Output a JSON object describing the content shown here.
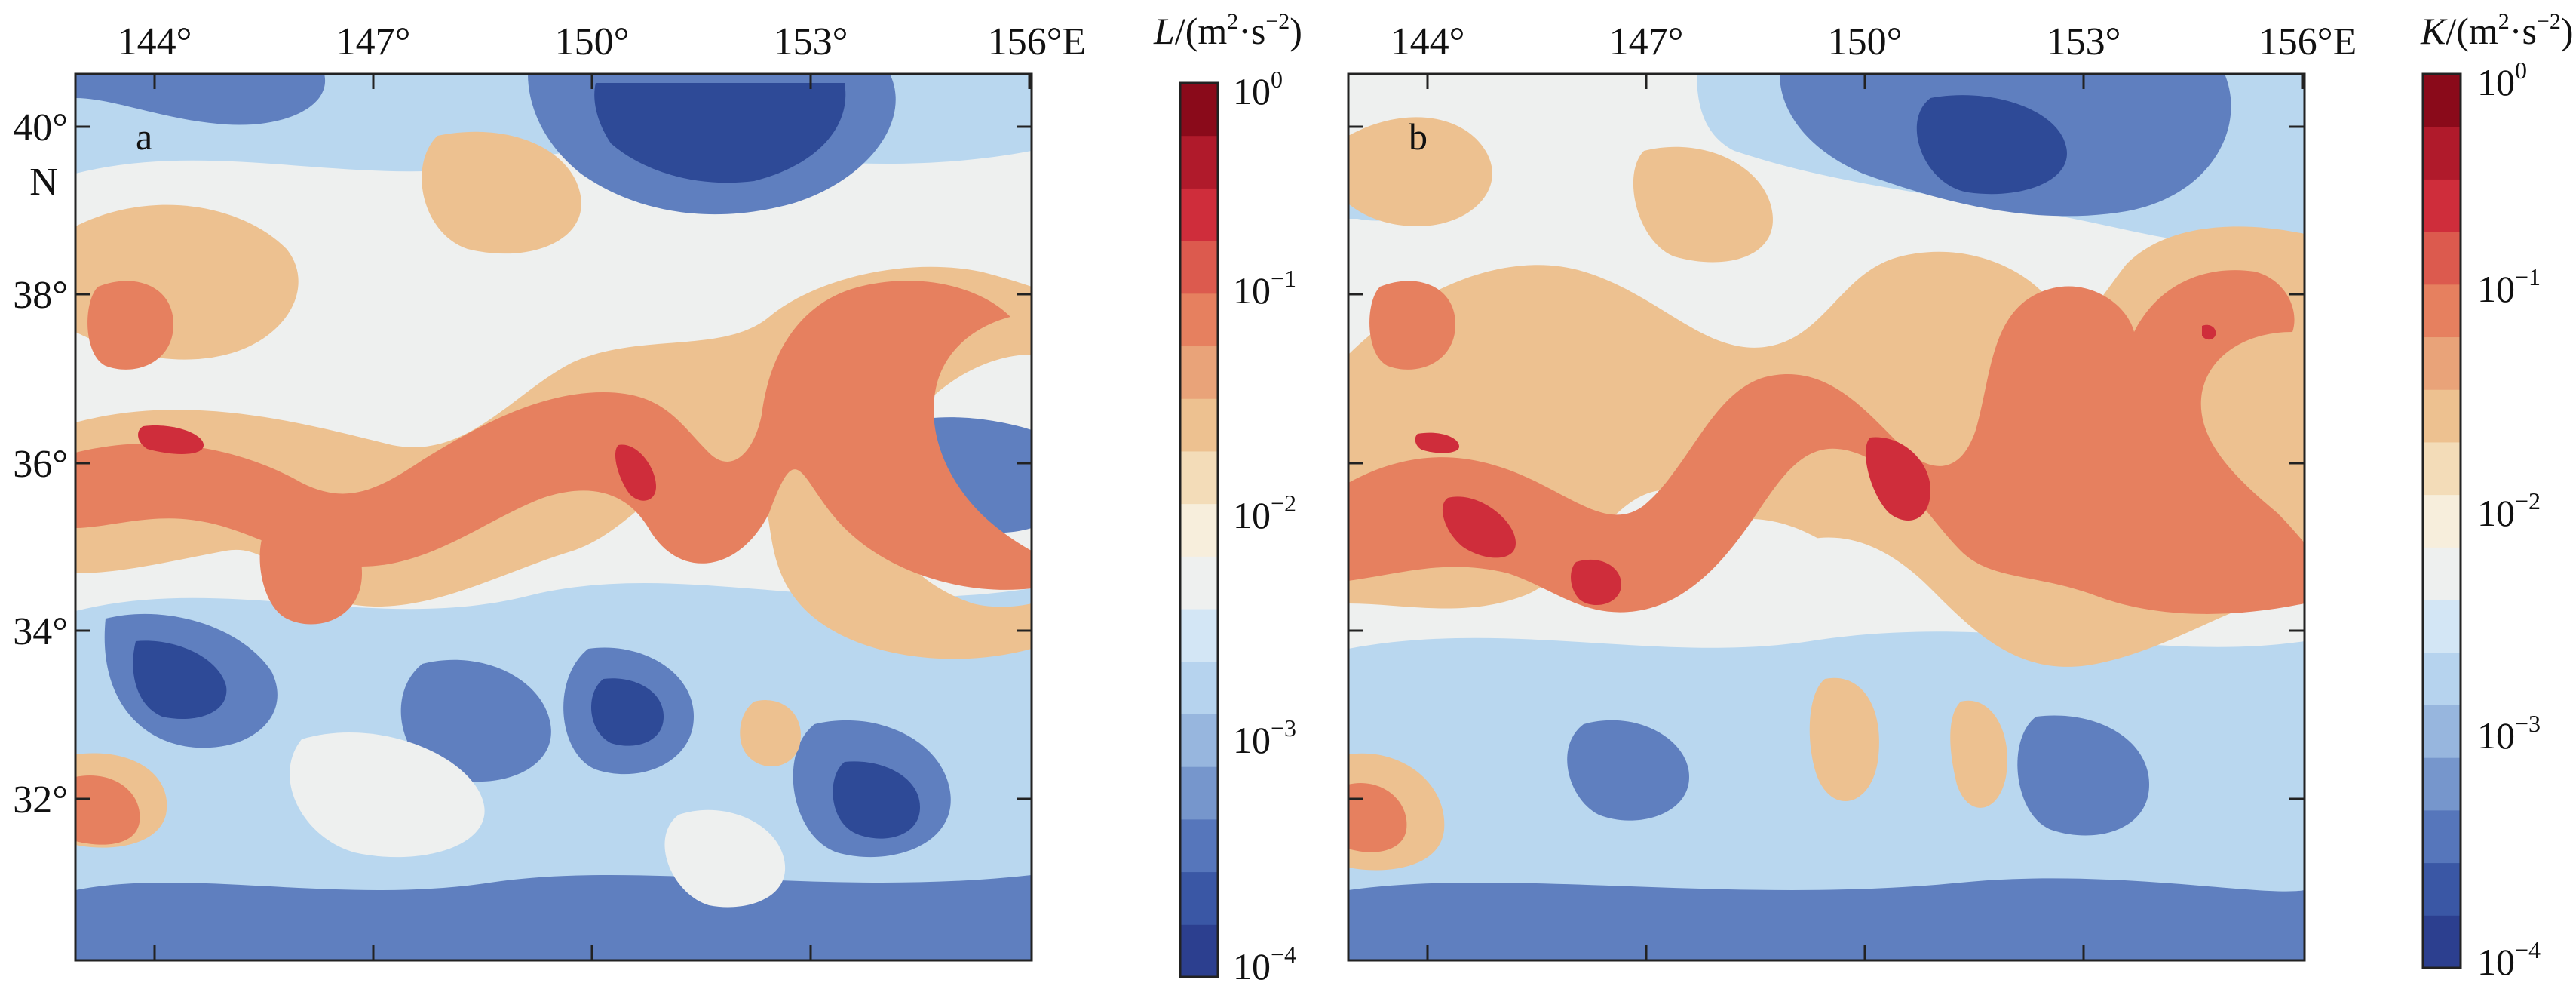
{
  "colors": {
    "deep_blue": "#2e4a97",
    "mid_blue": "#5f7fbf",
    "light_blue": "#b9d7ef",
    "pale": "#eef0ef",
    "tan": "#edc190",
    "salmon": "#e6805f",
    "red": "#cf2d3b",
    "dark_red": "#8a0a1a",
    "frame": "#222222"
  },
  "colormap": [
    "#2c3f8f",
    "#3a57a5",
    "#5676bb",
    "#7696cc",
    "#97b6de",
    "#b6d3ee",
    "#d3e6f5",
    "#eef0ef",
    "#f7eedc",
    "#f3dcb8",
    "#edc190",
    "#e9a379",
    "#e6805f",
    "#dc5a4e",
    "#cf2d3b",
    "#b01a2b",
    "#8a0a1a"
  ],
  "map_ticks": {
    "lon_labels": [
      "144°",
      "147°",
      "150°",
      "153°",
      "156°E"
    ],
    "lat_labels": [
      "40°",
      "38°",
      "36°",
      "34°",
      "32°"
    ],
    "north_label": "N"
  },
  "panels": [
    {
      "letter": "a",
      "variable": "L",
      "colorbar_title": {
        "var": "L",
        "unit_open": "/(m",
        "sup1": "2",
        "mid": "·s",
        "sup2": "−2",
        "close": ")"
      },
      "colorbar_ticks": [
        {
          "base": "10",
          "exp": "0"
        },
        {
          "base": "10",
          "exp": "−1"
        },
        {
          "base": "10",
          "exp": "−2"
        },
        {
          "base": "10",
          "exp": "−3"
        },
        {
          "base": "10",
          "exp": "−4"
        }
      ],
      "colorbar_range": {
        "min": 0.0001,
        "max": 1,
        "scale": "log"
      }
    },
    {
      "letter": "b",
      "variable": "K",
      "colorbar_title": {
        "var": "K",
        "unit_open": "/(m",
        "sup1": "2",
        "mid": "·s",
        "sup2": "−2",
        "close": ")"
      },
      "colorbar_ticks": [
        {
          "base": "10",
          "exp": "0"
        },
        {
          "base": "10",
          "exp": "−1"
        },
        {
          "base": "10",
          "exp": "−2"
        },
        {
          "base": "10",
          "exp": "−3"
        },
        {
          "base": "10",
          "exp": "−4"
        }
      ],
      "colorbar_range": {
        "min": 0.0001,
        "max": 1,
        "scale": "log"
      }
    }
  ]
}
